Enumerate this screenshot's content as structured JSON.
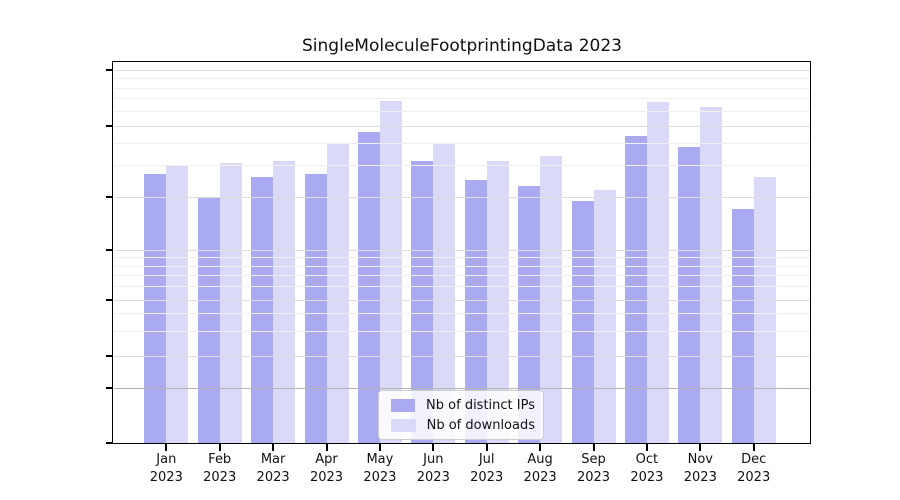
{
  "chart_data": {
    "type": "bar",
    "title": "SingleMoleculeFootprintingData 2023",
    "categories": [
      "Jan 2023",
      "Feb 2023",
      "Mar 2023",
      "Apr 2023",
      "May 2023",
      "Jun 2023",
      "Jul 2023",
      "Aug 2023",
      "Sep 2023",
      "Oct 2023",
      "Nov 2023",
      "Dec 2023"
    ],
    "x_tick_months": [
      "Jan",
      "Feb",
      "Mar",
      "Apr",
      "May",
      "Jun",
      "Jul",
      "Aug",
      "Sep",
      "Oct",
      "Nov",
      "Dec"
    ],
    "x_tick_year": "2023",
    "series": [
      {
        "name": "Nb of distinct IPs",
        "color": "#aaaaf0",
        "values": [
          27,
          20,
          26,
          27,
          46,
          32,
          25,
          23,
          19,
          44,
          38,
          17
        ]
      },
      {
        "name": "Nb of downloads",
        "color": "#dadaf8",
        "values": [
          30,
          31,
          32,
          40,
          68,
          40,
          32,
          34,
          22,
          67,
          63,
          26
        ]
      }
    ],
    "yscale": "symlog",
    "y_major_ticks": [
      0,
      1,
      2,
      5,
      10,
      20,
      50,
      100
    ],
    "y_minor_ticks": [
      3,
      4,
      6,
      7,
      8,
      9,
      30,
      40,
      60,
      70,
      80,
      90
    ],
    "ylim": [
      0,
      110
    ],
    "grid": "on",
    "legend_position": "lower center"
  }
}
